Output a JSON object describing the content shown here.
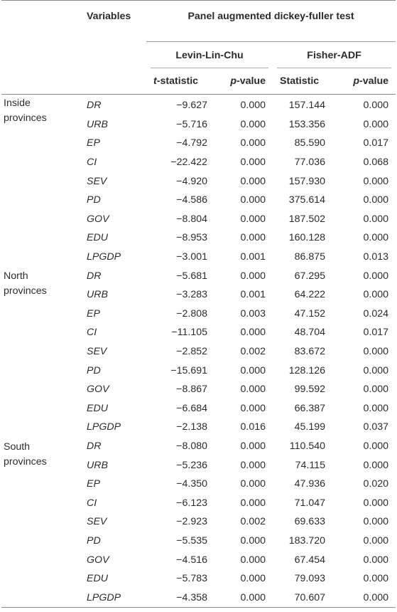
{
  "header": {
    "variables_label": "Variables",
    "test_title": "Panel augmented dickey-fuller test",
    "groups": [
      "Levin-Lin-Chu",
      "Fisher-ADF"
    ],
    "llc_t_prefix": "t",
    "llc_t_suffix": "-statistic",
    "p_prefix": "p",
    "p_suffix": "-value",
    "fisher_stat": "Statistic"
  },
  "sections": [
    {
      "name": "Inside provinces",
      "rows": [
        {
          "var": "DR",
          "t": "−9.627",
          "p1": "0.000",
          "stat": "157.144",
          "p2": "0.000"
        },
        {
          "var": "URB",
          "t": "−5.716",
          "p1": "0.000",
          "stat": "153.356",
          "p2": "0.000"
        },
        {
          "var": "EP",
          "t": "−4.792",
          "p1": "0.000",
          "stat": "85.590",
          "p2": "0.017"
        },
        {
          "var": "CI",
          "t": "−22.422",
          "p1": "0.000",
          "stat": "77.036",
          "p2": "0.068"
        },
        {
          "var": "SEV",
          "t": "−4.920",
          "p1": "0.000",
          "stat": "157.930",
          "p2": "0.000"
        },
        {
          "var": "PD",
          "t": "−4.586",
          "p1": "0.000",
          "stat": "375.614",
          "p2": "0.000"
        },
        {
          "var": "GOV",
          "t": "−8.804",
          "p1": "0.000",
          "stat": "187.502",
          "p2": "0.000"
        },
        {
          "var": "EDU",
          "t": "−8.953",
          "p1": "0.000",
          "stat": "160.128",
          "p2": "0.000"
        },
        {
          "var": "LPGDP",
          "t": "−3.001",
          "p1": "0.001",
          "stat": "86.875",
          "p2": "0.013"
        }
      ]
    },
    {
      "name": "North provinces",
      "rows": [
        {
          "var": "DR",
          "t": "−5.681",
          "p1": "0.000",
          "stat": "67.295",
          "p2": "0.000"
        },
        {
          "var": "URB",
          "t": "−3.283",
          "p1": "0.001",
          "stat": "64.222",
          "p2": "0.000"
        },
        {
          "var": "EP",
          "t": "−2.808",
          "p1": "0.003",
          "stat": "47.152",
          "p2": "0.024"
        },
        {
          "var": "CI",
          "t": "−11.105",
          "p1": "0.000",
          "stat": "48.704",
          "p2": "0.017"
        },
        {
          "var": "SEV",
          "t": "−2.852",
          "p1": "0.002",
          "stat": "83.672",
          "p2": "0.000"
        },
        {
          "var": "PD",
          "t": "−15.691",
          "p1": "0.000",
          "stat": "128.126",
          "p2": "0.000"
        },
        {
          "var": "GOV",
          "t": "−8.867",
          "p1": "0.000",
          "stat": "99.592",
          "p2": "0.000"
        },
        {
          "var": "EDU",
          "t": "−6.684",
          "p1": "0.000",
          "stat": "66.387",
          "p2": "0.000"
        },
        {
          "var": "LPGDP",
          "t": "−2.138",
          "p1": "0.016",
          "stat": "45.199",
          "p2": "0.037"
        }
      ]
    },
    {
      "name": "South provinces",
      "rows": [
        {
          "var": "DR",
          "t": "−8.080",
          "p1": "0.000",
          "stat": "110.540",
          "p2": "0.000"
        },
        {
          "var": "URB",
          "t": "−5.236",
          "p1": "0.000",
          "stat": "74.115",
          "p2": "0.000"
        },
        {
          "var": "EP",
          "t": "−4.350",
          "p1": "0.000",
          "stat": "47.936",
          "p2": "0.020"
        },
        {
          "var": "CI",
          "t": "−6.123",
          "p1": "0.000",
          "stat": "71.047",
          "p2": "0.000"
        },
        {
          "var": "SEV",
          "t": "−2.923",
          "p1": "0.002",
          "stat": "69.633",
          "p2": "0.000"
        },
        {
          "var": "PD",
          "t": "−5.535",
          "p1": "0.000",
          "stat": "183.720",
          "p2": "0.000"
        },
        {
          "var": "GOV",
          "t": "−4.516",
          "p1": "0.000",
          "stat": "67.454",
          "p2": "0.000"
        },
        {
          "var": "EDU",
          "t": "−5.783",
          "p1": "0.000",
          "stat": "79.093",
          "p2": "0.000"
        },
        {
          "var": "LPGDP",
          "t": "−4.358",
          "p1": "0.000",
          "stat": "70.607",
          "p2": "0.000"
        }
      ]
    }
  ]
}
